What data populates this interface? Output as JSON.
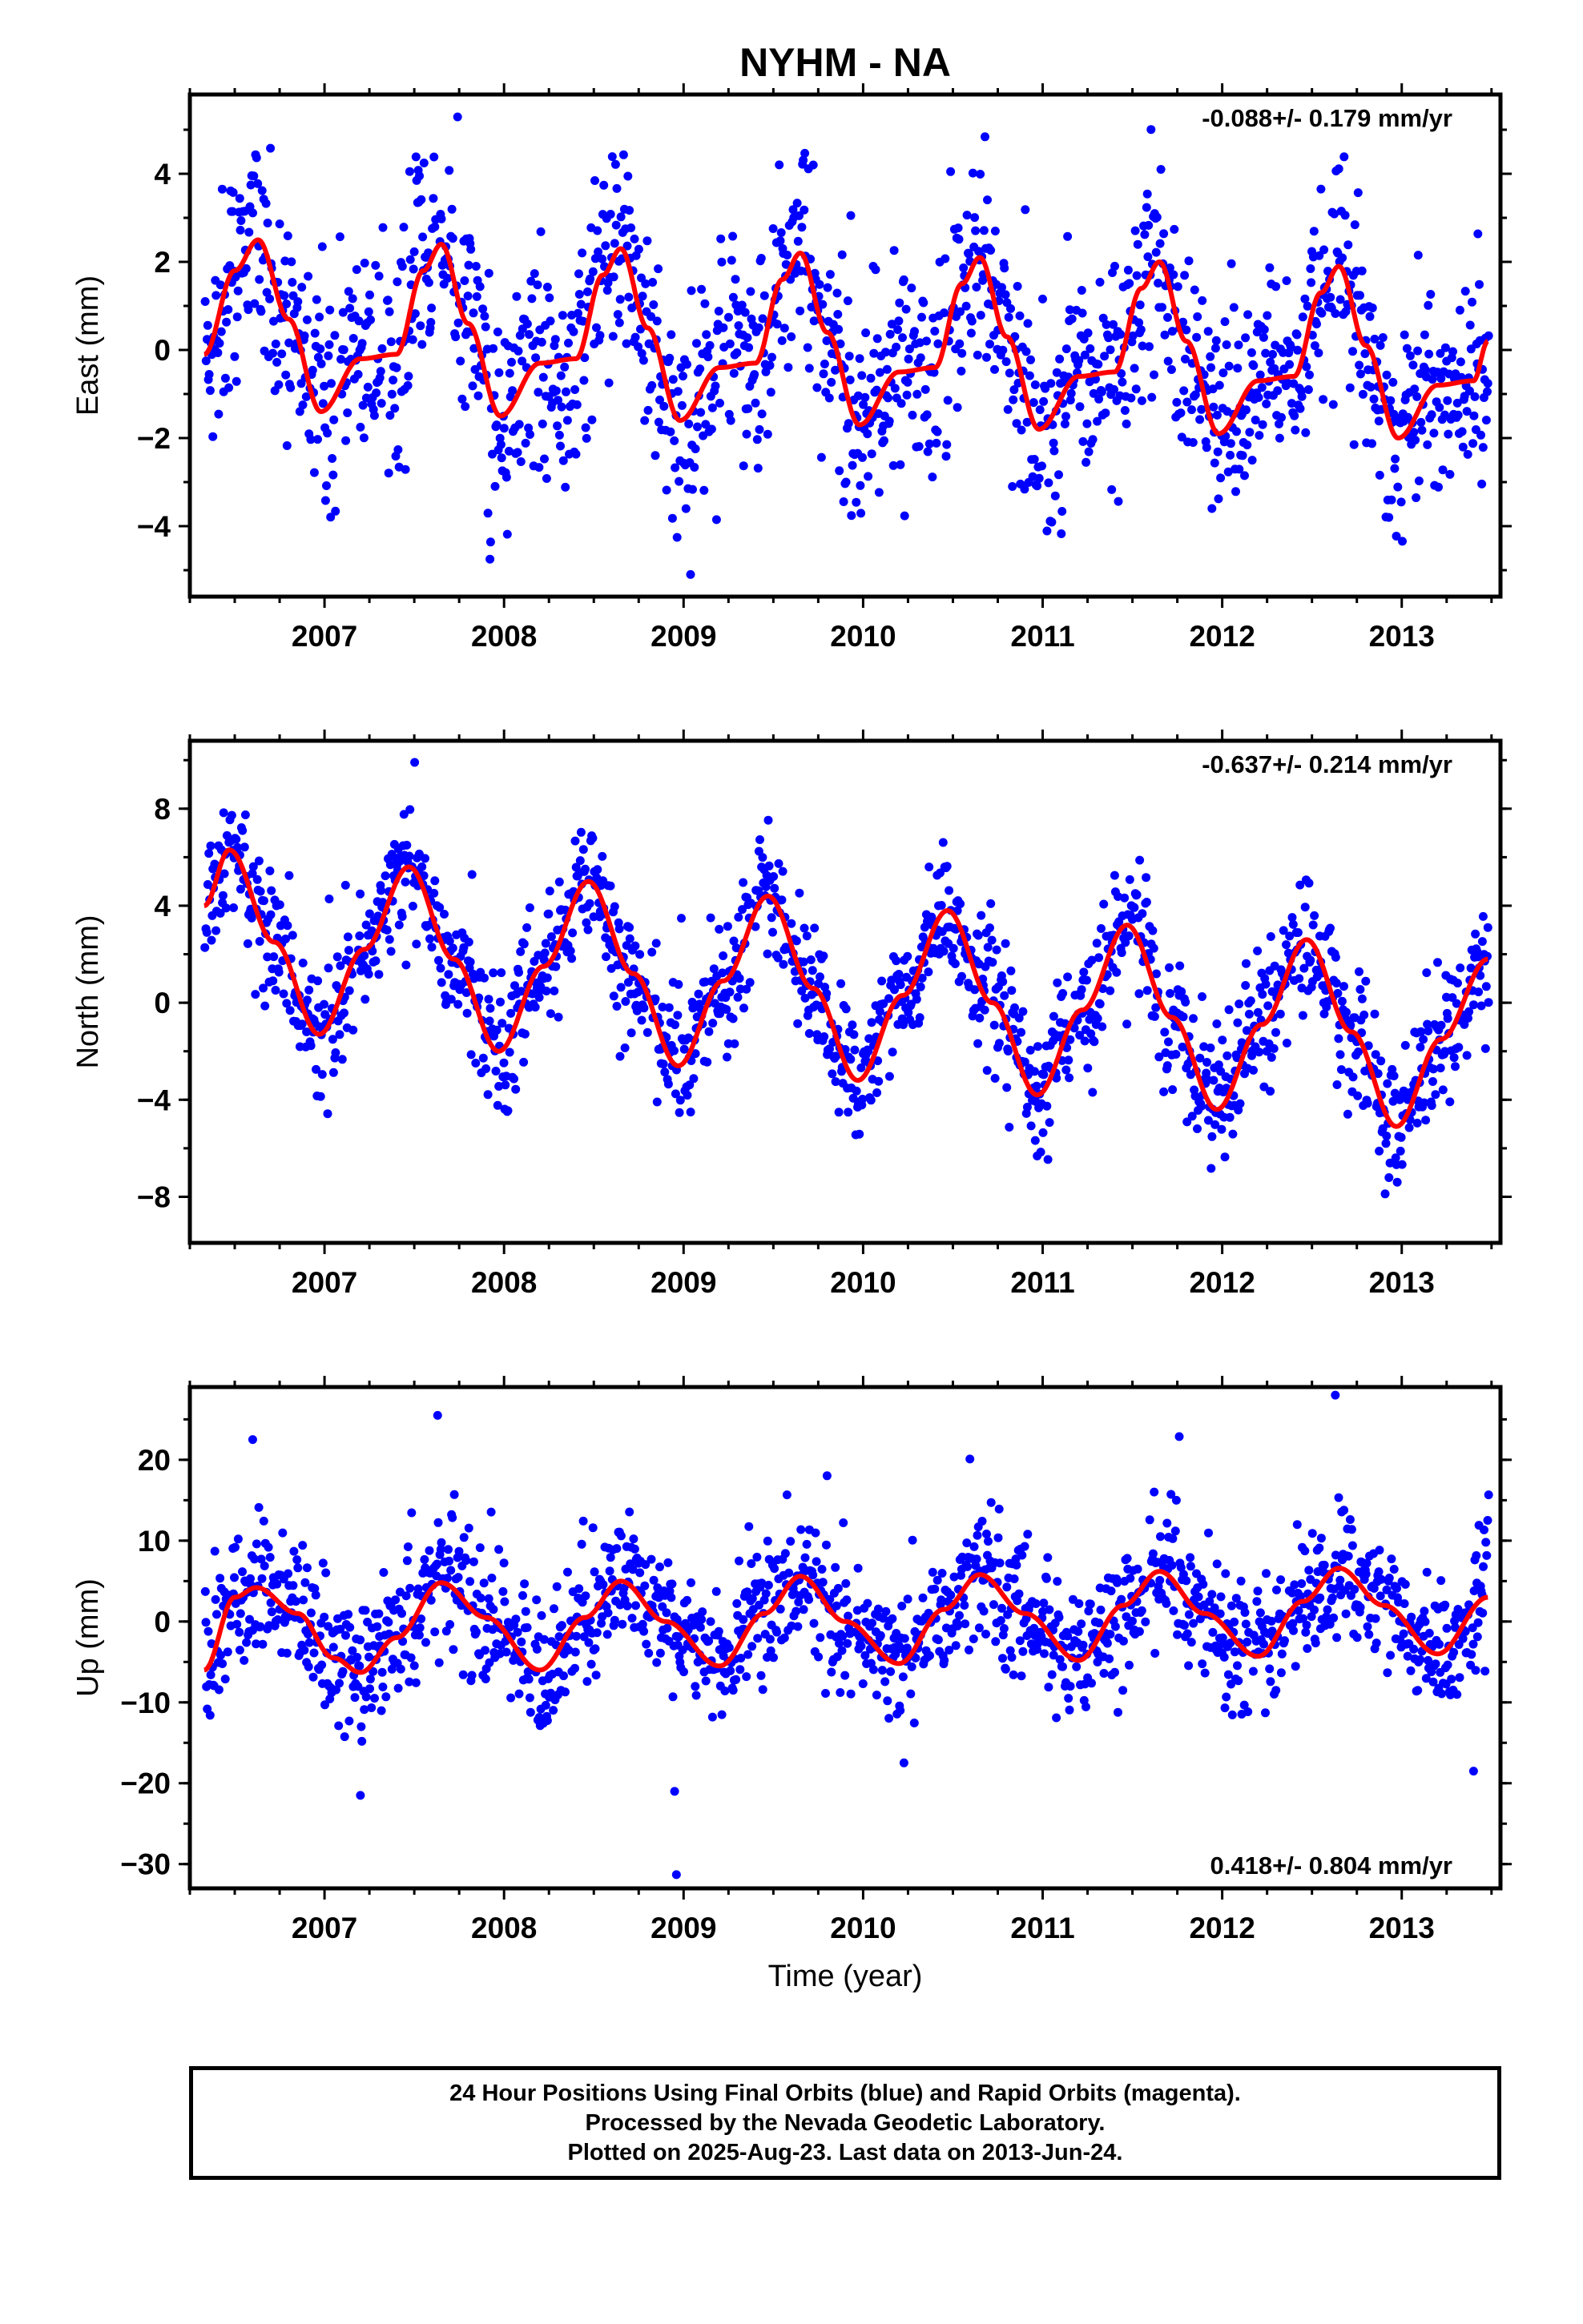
{
  "title": "NYHM - NA",
  "colors": {
    "points": "#0000ff",
    "fit": "#ff0000",
    "frame": "#000000"
  },
  "x_axis": {
    "label": "Time (year)",
    "range": [
      2006.25,
      2013.55
    ],
    "ticks": [
      "2007",
      "2008",
      "2009",
      "2010",
      "2011",
      "2012",
      "2013"
    ]
  },
  "chart_data": [
    {
      "type": "scatter",
      "panel": "east",
      "ylabel": "East (mm)",
      "ylim": [
        -5.6,
        5.8
      ],
      "yticks": [
        "4",
        "2",
        "0",
        "−2",
        "−4"
      ],
      "rate_annotation": "-0.088+/- 0.179 mm/yr",
      "annotation_position": "top-right",
      "fit": {
        "x": [
          2006.33,
          2006.5,
          2006.63,
          2006.8,
          2006.98,
          2007.2,
          2007.4,
          2007.55,
          2007.65,
          2007.8,
          2007.98,
          2008.2,
          2008.4,
          2008.55,
          2008.65,
          2008.8,
          2008.98,
          2009.2,
          2009.4,
          2009.55,
          2009.65,
          2009.8,
          2009.98,
          2010.2,
          2010.4,
          2010.55,
          2010.65,
          2010.8,
          2010.98,
          2011.2,
          2011.4,
          2011.55,
          2011.65,
          2011.8,
          2011.98,
          2012.2,
          2012.4,
          2012.55,
          2012.65,
          2012.8,
          2012.98,
          2013.2,
          2013.4,
          2013.48
        ],
        "y": [
          -0.1,
          1.8,
          2.5,
          0.7,
          -1.4,
          -0.2,
          -0.1,
          1.8,
          2.4,
          0.6,
          -1.5,
          -0.3,
          -0.2,
          1.7,
          2.3,
          0.5,
          -1.6,
          -0.4,
          -0.3,
          1.6,
          2.2,
          0.4,
          -1.7,
          -0.5,
          -0.4,
          1.5,
          2.1,
          0.3,
          -1.8,
          -0.6,
          -0.5,
          1.4,
          2.0,
          0.2,
          -1.9,
          -0.7,
          -0.6,
          1.3,
          1.9,
          0.1,
          -2.0,
          -0.8,
          -0.7,
          0.2
        ]
      },
      "data_summary": "daily 24-hour positions 2006.3–2013.48, scatter about fit with sd ≈ 1.2 mm"
    },
    {
      "type": "scatter",
      "panel": "north",
      "ylabel": "North (mm)",
      "ylim": [
        -9.9,
        10.8
      ],
      "yticks": [
        "8",
        "4",
        "0",
        "−4",
        "−8"
      ],
      "rate_annotation": "-0.637+/- 0.214 mm/yr",
      "annotation_position": "top-right",
      "fit": {
        "x": [
          2006.33,
          2006.47,
          2006.72,
          2006.97,
          2007.22,
          2007.47,
          2007.72,
          2007.97,
          2008.22,
          2008.47,
          2008.72,
          2008.97,
          2009.22,
          2009.47,
          2009.72,
          2009.97,
          2010.22,
          2010.47,
          2010.72,
          2010.97,
          2011.22,
          2011.47,
          2011.72,
          2011.97,
          2012.22,
          2012.47,
          2012.72,
          2012.97,
          2013.22,
          2013.48
        ],
        "y": [
          4.0,
          6.3,
          2.5,
          -1.3,
          2.2,
          5.6,
          1.8,
          -2.0,
          1.5,
          5.0,
          1.2,
          -2.6,
          0.9,
          4.4,
          0.6,
          -3.2,
          0.3,
          3.8,
          0.0,
          -3.8,
          -0.3,
          3.2,
          -0.6,
          -4.4,
          -0.9,
          2.6,
          -1.2,
          -5.1,
          -1.5,
          1.8
        ]
      },
      "data_summary": "daily 24-hour positions 2006.3–2013.48, scatter about fit with sd ≈ 1.3 mm"
    },
    {
      "type": "scatter",
      "panel": "up",
      "ylabel": "Up (mm)",
      "ylim": [
        -33,
        29
      ],
      "yticks": [
        "20",
        "10",
        "0",
        "−10",
        "−20",
        "−30"
      ],
      "rate_annotation": "0.418+/- 0.804 mm/yr",
      "annotation_position": "bottom-right",
      "fit": {
        "x": [
          2006.33,
          2006.5,
          2006.62,
          2006.85,
          2007.05,
          2007.2,
          2007.4,
          2007.65,
          2007.9,
          2008.2,
          2008.45,
          2008.65,
          2008.9,
          2009.2,
          2009.45,
          2009.65,
          2009.9,
          2010.2,
          2010.45,
          2010.65,
          2010.9,
          2011.2,
          2011.45,
          2011.65,
          2011.9,
          2012.2,
          2012.45,
          2012.65,
          2012.9,
          2013.2,
          2013.48
        ],
        "y": [
          -6.0,
          3.0,
          4.2,
          1.0,
          -4.5,
          -6.3,
          -2.0,
          4.8,
          0.5,
          -6.0,
          0.5,
          5.0,
          0.0,
          -5.5,
          1.0,
          5.6,
          0.0,
          -5.2,
          1.5,
          5.8,
          1.0,
          -4.8,
          2.0,
          6.2,
          1.0,
          -4.3,
          2.5,
          6.6,
          2.0,
          -4.0,
          3.0
        ]
      },
      "outliers": {
        "x": [
          2006.6,
          2007.2,
          2007.63,
          2008.95,
          2008.96,
          2012.63,
          2013.4
        ],
        "y": [
          22.5,
          -21.5,
          25.5,
          -21,
          -31.3,
          28,
          -18.5
        ]
      },
      "data_summary": "daily 24-hour positions 2006.3–2013.48, scatter about fit with sd ≈ 4 mm"
    }
  ],
  "footer": {
    "line1": "24 Hour Positions Using Final Orbits (blue) and Rapid Orbits (magenta).",
    "line2": "Processed by the Nevada Geodetic Laboratory.",
    "line3": "Plotted on 2025-Aug-23. Last data on 2013-Jun-24."
  }
}
